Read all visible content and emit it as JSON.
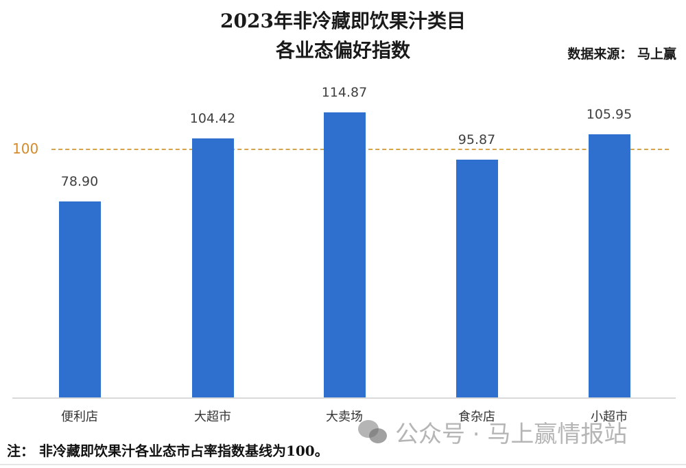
{
  "title": {
    "line1": "2023年非冷藏即饮果汁类目",
    "line2": "各业态偏好指数"
  },
  "source": "数据来源： 马上赢",
  "reference": {
    "label": "100",
    "value": 100,
    "color": "#d4a34a"
  },
  "note": "注： 非冷藏即饮果汁各业态市占率指数基线为100。",
  "watermark": {
    "icon": "wechat-icon",
    "text": "公众号 · 马上赢情报站"
  },
  "colors": {
    "bar": "#2f6fcd",
    "reference": "#d4a34a",
    "reference_label": "#d48a2a"
  },
  "chart_data": {
    "type": "bar",
    "title": "2023年非冷藏即饮果汁类目各业态偏好指数",
    "categories": [
      "便利店",
      "大超市",
      "大卖场",
      "食杂店",
      "小超市"
    ],
    "values": [
      78.9,
      104.42,
      114.87,
      95.87,
      105.95
    ],
    "value_labels": [
      "78.90",
      "104.42",
      "114.87",
      "95.87",
      "105.95"
    ],
    "xlabel": "",
    "ylabel": "",
    "ylim": [
      0,
      120
    ],
    "grid": false,
    "legend": "none",
    "annotations": [
      {
        "type": "hline",
        "y": 100,
        "label": "100",
        "style": "dashed",
        "color": "#d4a34a"
      }
    ]
  }
}
